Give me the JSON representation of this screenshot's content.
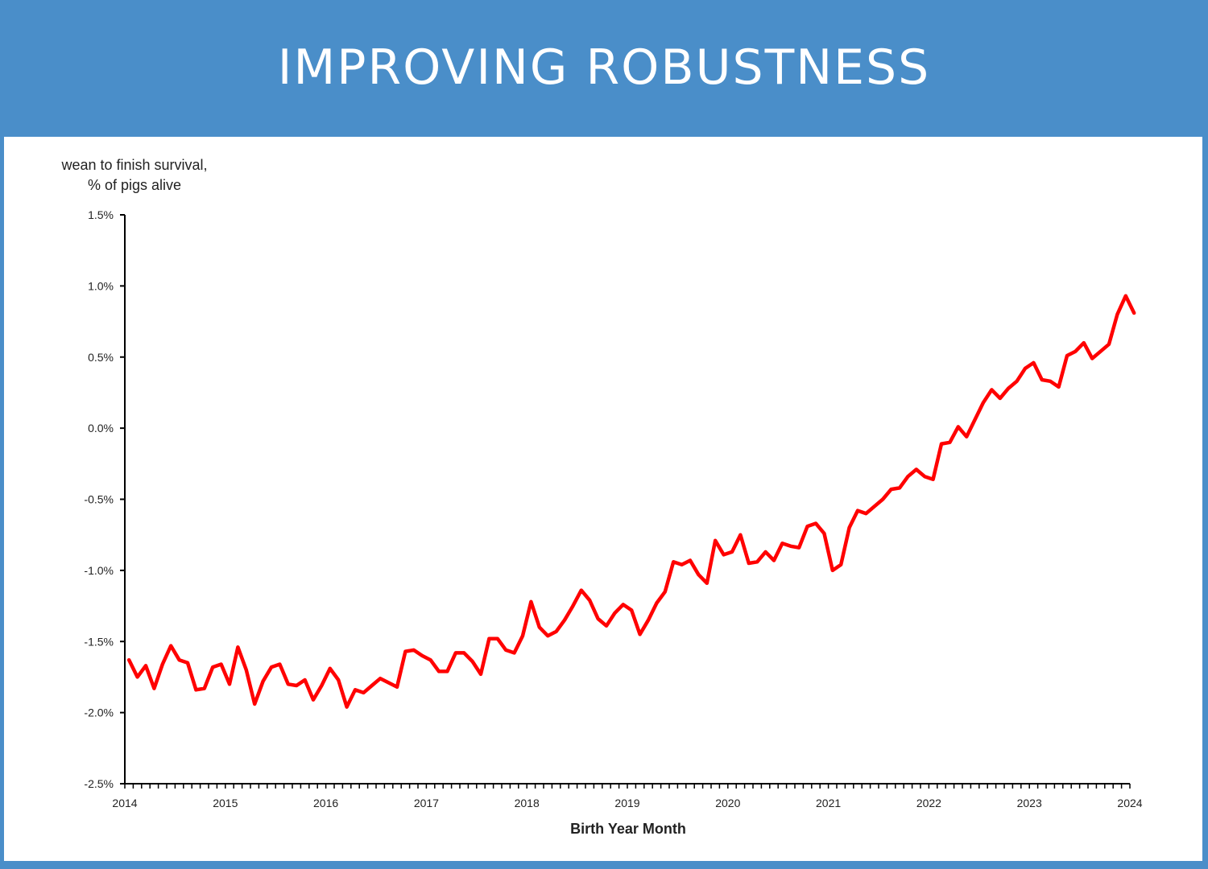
{
  "header": {
    "title": "IMPROVING ROBUSTNESS"
  },
  "colors": {
    "banner": "#4a8ec9",
    "series": "#ff0000",
    "axis": "#000000"
  },
  "chart_data": {
    "type": "line",
    "title": "",
    "ylabel_line1": "wean to finish survival,",
    "ylabel_line2": "% of pigs alive",
    "xlabel": "Birth Year Month",
    "ylim": [
      -2.5,
      1.5
    ],
    "xlim": [
      2014,
      2024
    ],
    "yticks": [
      1.5,
      1.0,
      0.5,
      0.0,
      -0.5,
      -1.0,
      -1.5,
      -2.0,
      -2.5
    ],
    "ytick_labels": [
      "1.5%",
      "1.0%",
      "0.5%",
      "0.0%",
      "-0.5%",
      "-1.0%",
      "-1.5%",
      "-2.0%",
      "-2.5%"
    ],
    "xticks": [
      2014,
      2015,
      2016,
      2017,
      2018,
      2019,
      2020,
      2021,
      2022,
      2023,
      2024
    ],
    "xtick_labels": [
      "2014",
      "2015",
      "2016",
      "2017",
      "2018",
      "2019",
      "2020",
      "2021",
      "2022",
      "2023",
      "2024"
    ],
    "grid": false,
    "series": [
      {
        "values": [
          -1.63,
          -1.75,
          -1.67,
          -1.83,
          -1.66,
          -1.53,
          -1.63,
          -1.65,
          -1.84,
          -1.83,
          -1.68,
          -1.66,
          -1.8,
          -1.54,
          -1.7,
          -1.94,
          -1.78,
          -1.68,
          -1.66,
          -1.8,
          -1.81,
          -1.77,
          -1.91,
          -1.81,
          -1.69,
          -1.77,
          -1.96,
          -1.84,
          -1.86,
          -1.81,
          -1.76,
          -1.79,
          -1.82,
          -1.57,
          -1.56,
          -1.6,
          -1.63,
          -1.71,
          -1.71,
          -1.58,
          -1.58,
          -1.64,
          -1.73,
          -1.48,
          -1.48,
          -1.56,
          -1.58,
          -1.46,
          -1.22,
          -1.4,
          -1.46,
          -1.43,
          -1.35,
          -1.25,
          -1.14,
          -1.21,
          -1.34,
          -1.39,
          -1.3,
          -1.24,
          -1.28,
          -1.45,
          -1.35,
          -1.23,
          -1.15,
          -0.94,
          -0.96,
          -0.93,
          -1.03,
          -1.09,
          -0.79,
          -0.89,
          -0.87,
          -0.75,
          -0.95,
          -0.94,
          -0.87,
          -0.93,
          -0.81,
          -0.83,
          -0.84,
          -0.69,
          -0.67,
          -0.74,
          -1.0,
          -0.96,
          -0.7,
          -0.58,
          -0.6,
          -0.55,
          -0.5,
          -0.43,
          -0.42,
          -0.34,
          -0.29,
          -0.34,
          -0.36,
          -0.11,
          -0.1,
          0.01,
          -0.06,
          0.06,
          0.18,
          0.27,
          0.21,
          0.28,
          0.33,
          0.42,
          0.46,
          0.34,
          0.33,
          0.29,
          0.51,
          0.54,
          0.6,
          0.49,
          0.54,
          0.59,
          0.8,
          0.93,
          0.81
        ]
      }
    ]
  }
}
